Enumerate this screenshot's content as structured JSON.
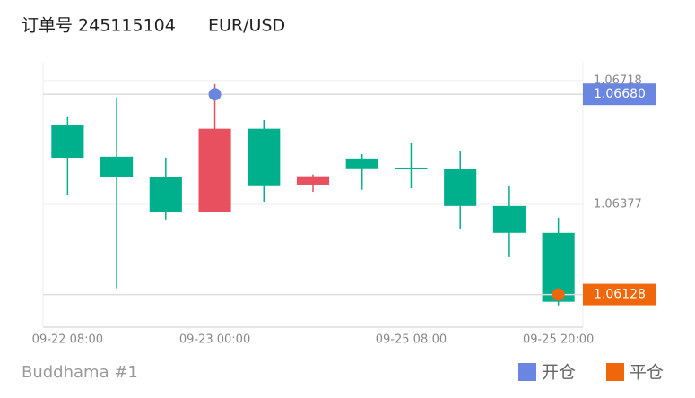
{
  "chart_data": {
    "type": "candlestick",
    "title": "订单号 245115104",
    "subtitle": "EUR/USD",
    "footer": "Buddhama #1",
    "categories": [
      "09-22 08:00",
      null,
      null,
      "09-23 00:00",
      null,
      null,
      null,
      "09-25 08:00",
      null,
      null,
      "09-25 20:00"
    ],
    "open": [
      1.06594,
      1.06508,
      1.06451,
      1.06355,
      1.06585,
      1.06431,
      1.06503,
      1.06478,
      1.06473,
      1.06372,
      1.06298
    ],
    "high": [
      1.06619,
      1.06671,
      1.06505,
      1.06708,
      1.06609,
      1.06459,
      1.06515,
      1.06545,
      1.06523,
      1.06426,
      1.0634
    ],
    "low": [
      1.06402,
      1.06145,
      1.06335,
      1.06355,
      1.06384,
      1.06411,
      1.06417,
      1.06421,
      1.0631,
      1.06231,
      1.06098
    ],
    "close": [
      1.06505,
      1.06451,
      1.06355,
      1.06585,
      1.06429,
      1.06454,
      1.06476,
      1.06473,
      1.06372,
      1.06298,
      1.06108
    ],
    "up_color": "#e8505f",
    "down_color": "#00b08d",
    "ylim": [
      1.06038,
      1.06767
    ],
    "yticks": [
      1.06718,
      1.06377
    ],
    "markers": [
      {
        "name": "开仓",
        "color": "#6b86e0",
        "x": "09-23 00:00",
        "value": 1.0668,
        "value_label": "1.06680"
      },
      {
        "name": "平仓",
        "color": "#f0660a",
        "x": "09-25 20:00",
        "value": 1.06128,
        "value_label": "1.06128"
      }
    ]
  }
}
